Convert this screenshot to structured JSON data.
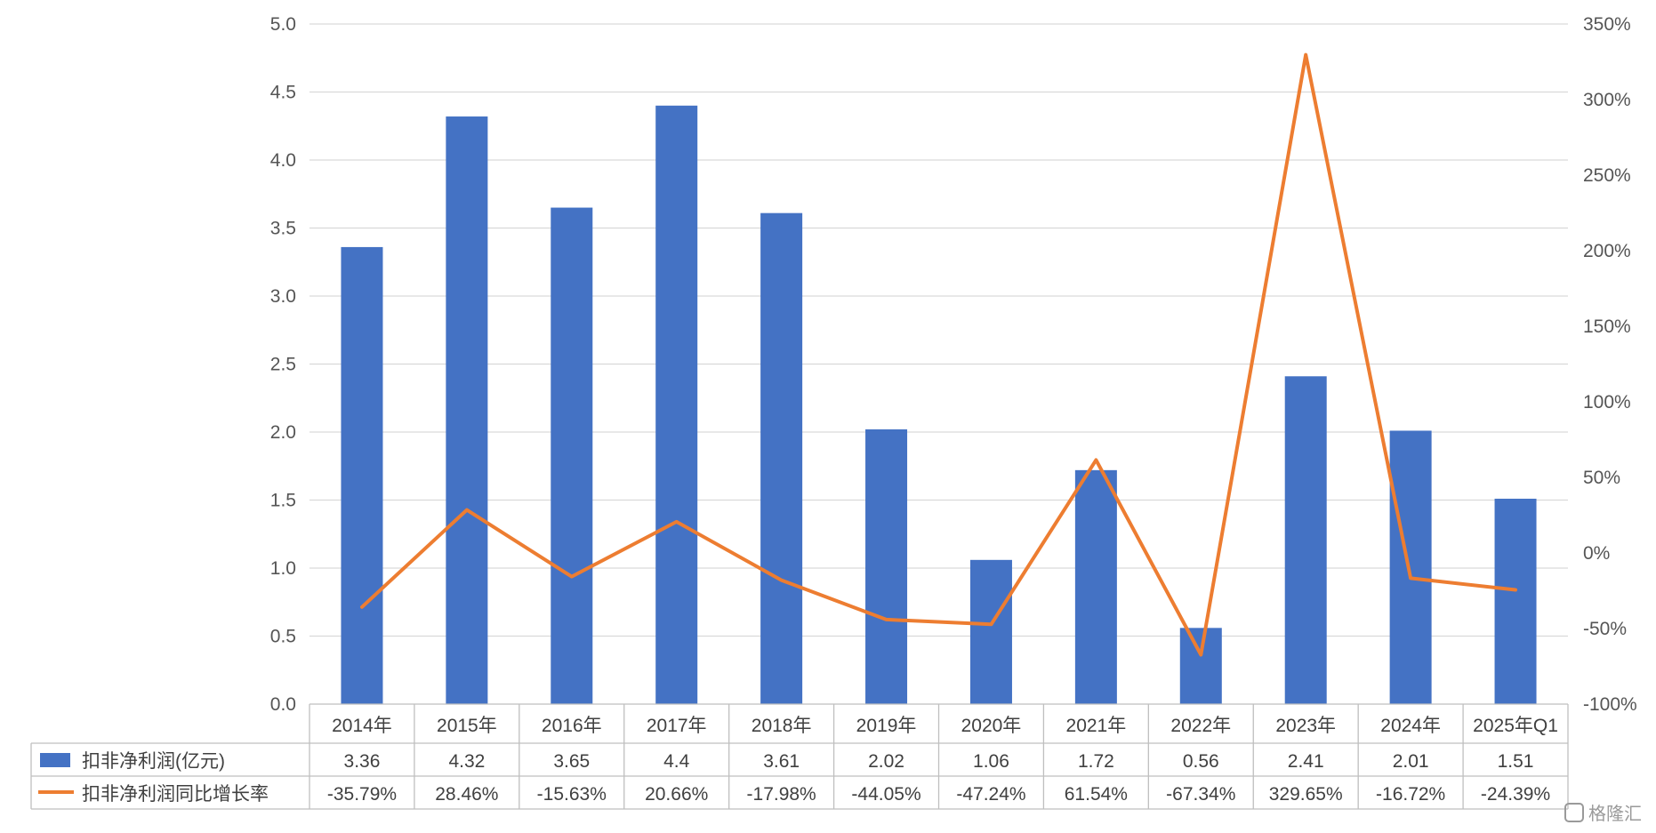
{
  "chart_data": {
    "type": "bar",
    "categories": [
      "2014年",
      "2015年",
      "2016年",
      "2017年",
      "2018年",
      "2019年",
      "2020年",
      "2021年",
      "2022年",
      "2023年",
      "2024年",
      "2025年Q1"
    ],
    "series": [
      {
        "name": "扣非净利润(亿元)",
        "type": "bar",
        "axis": "left",
        "color": "#4472C4",
        "values": [
          3.36,
          4.32,
          3.65,
          4.4,
          3.61,
          2.02,
          1.06,
          1.72,
          0.56,
          2.41,
          2.01,
          1.51
        ],
        "labels": [
          "3.36",
          "4.32",
          "3.65",
          "4.4",
          "3.61",
          "2.02",
          "1.06",
          "1.72",
          "0.56",
          "2.41",
          "2.01",
          "1.51"
        ]
      },
      {
        "name": "扣非净利润同比增长率",
        "type": "line",
        "axis": "right",
        "color": "#ED7D31",
        "values": [
          -35.79,
          28.46,
          -15.63,
          20.66,
          -17.98,
          -44.05,
          -47.24,
          61.54,
          -67.34,
          329.65,
          -16.72,
          -24.39
        ],
        "labels": [
          "-35.79%",
          "28.46%",
          "-15.63%",
          "20.66%",
          "-17.98%",
          "-44.05%",
          "-47.24%",
          "61.54%",
          "-67.34%",
          "329.65%",
          "-16.72%",
          "-24.39%"
        ]
      }
    ],
    "y_left": {
      "ylim": [
        0,
        5
      ],
      "ticks": [
        0,
        0.5,
        1,
        1.5,
        2,
        2.5,
        3,
        3.5,
        4,
        4.5,
        5
      ],
      "tick_labels": [
        "0.0",
        "0.5",
        "1.0",
        "1.5",
        "2.0",
        "2.5",
        "3.0",
        "3.5",
        "4.0",
        "4.5",
        "5.0"
      ]
    },
    "y_right": {
      "ylim": [
        -100,
        350
      ],
      "ticks": [
        -100,
        -50,
        0,
        50,
        100,
        150,
        200,
        250,
        300,
        350
      ],
      "tick_labels": [
        "-100%",
        "-50%",
        "0%",
        "50%",
        "100%",
        "150%",
        "200%",
        "250%",
        "300%",
        "350%"
      ]
    },
    "grid": true,
    "data_table": true
  },
  "watermark": "格隆汇"
}
